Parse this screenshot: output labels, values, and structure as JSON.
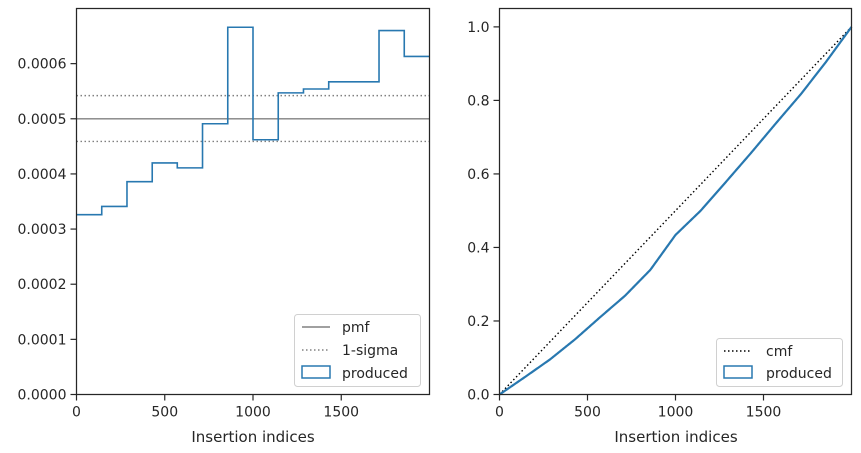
{
  "chart_data": [
    {
      "type": "step-histogram",
      "xlabel": "Insertion indices",
      "ylabel": "",
      "xlim": [
        0,
        2000
      ],
      "ylim": [
        0,
        0.0007
      ],
      "xticks": [
        0,
        500,
        1000,
        1500
      ],
      "xtick_labels": [
        "0",
        "500",
        "1000",
        "1500"
      ],
      "yticks": [
        0,
        0.0001,
        0.0002,
        0.0003,
        0.0004,
        0.0005,
        0.0006
      ],
      "ytick_labels": [
        "0.0000",
        "0.0001",
        "0.0002",
        "0.0003",
        "0.0004",
        "0.0005",
        "0.0006"
      ],
      "bin_edges": [
        0,
        143,
        286,
        429,
        571,
        714,
        857,
        1000,
        1143,
        1286,
        1429,
        1571,
        1714,
        1857,
        2000
      ],
      "series": [
        {
          "name": "produced",
          "style": "step",
          "color": "#2878b0",
          "values": [
            0.000326,
            0.000341,
            0.000386,
            0.00042,
            0.000411,
            0.000491,
            0.000666,
            0.000462,
            0.000547,
            0.000554,
            0.000567,
            0.000567,
            0.00066,
            0.000613
          ]
        },
        {
          "name": "pmf",
          "style": "hline",
          "color": "#808080",
          "value": 0.0005
        },
        {
          "name": "1-sigma",
          "style": "hline-dotted",
          "color": "#808080",
          "values": [
            0.000542,
            0.000459
          ]
        }
      ],
      "legend": {
        "placement": "lower-right",
        "entries": [
          "pmf",
          "1-sigma",
          "produced"
        ]
      }
    },
    {
      "type": "line",
      "xlabel": "Insertion indices",
      "ylabel": "",
      "xlim": [
        0,
        2000
      ],
      "ylim": [
        0,
        1.05
      ],
      "xticks": [
        0,
        500,
        1000,
        1500
      ],
      "xtick_labels": [
        "0",
        "500",
        "1000",
        "1500"
      ],
      "yticks": [
        0,
        0.2,
        0.4,
        0.6,
        0.8,
        1.0
      ],
      "ytick_labels": [
        "0.0",
        "0.2",
        "0.4",
        "0.6",
        "0.8",
        "1.0"
      ],
      "series": [
        {
          "name": "cmf",
          "style": "dotted",
          "color": "#000000",
          "x": [
            0,
            2000
          ],
          "y": [
            0,
            1.0
          ]
        },
        {
          "name": "produced",
          "style": "step",
          "color": "#2878b0",
          "x": [
            0,
            143,
            286,
            429,
            571,
            714,
            857,
            1000,
            1143,
            1286,
            1429,
            1571,
            1714,
            1857,
            2000
          ],
          "y": [
            0,
            0.047,
            0.095,
            0.15,
            0.21,
            0.269,
            0.339,
            0.434,
            0.5,
            0.578,
            0.657,
            0.738,
            0.818,
            0.906,
            1.0
          ]
        }
      ],
      "legend": {
        "placement": "lower-right",
        "entries": [
          "cmf",
          "produced"
        ]
      }
    }
  ],
  "colors": {
    "accent": "#2878b0",
    "reference": "#808080",
    "axes": "#262626"
  }
}
